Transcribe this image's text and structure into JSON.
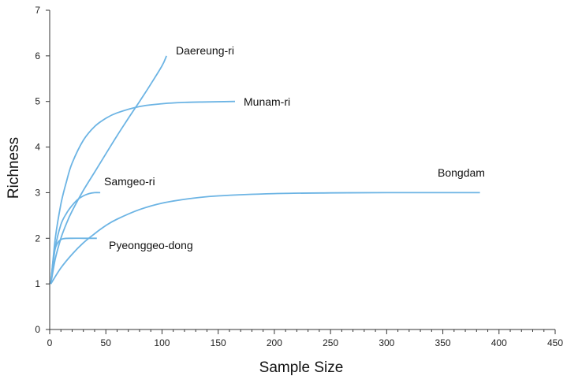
{
  "chart_data": {
    "type": "line",
    "xlabel": "Sample Size",
    "ylabel": "Richness",
    "xlim": [
      0,
      450
    ],
    "ylim": [
      0,
      7
    ],
    "x_major_ticks": [
      0,
      50,
      100,
      150,
      200,
      250,
      300,
      350,
      400,
      450
    ],
    "x_minor_step": 10,
    "y_ticks": [
      0,
      1,
      2,
      3,
      4,
      5,
      6,
      7
    ],
    "grid": false,
    "legend": "none",
    "line_color": "#6cb4e4",
    "series": [
      {
        "name": "Daereung-ri",
        "x": [
          1,
          5,
          10,
          15,
          20,
          30,
          40,
          50,
          60,
          70,
          80,
          90,
          100,
          104
        ],
        "y": [
          1.0,
          1.55,
          2.0,
          2.33,
          2.6,
          3.05,
          3.45,
          3.85,
          4.25,
          4.63,
          5.0,
          5.38,
          5.78,
          6.0
        ]
      },
      {
        "name": "Munam-ri",
        "x": [
          1,
          5,
          10,
          15,
          20,
          30,
          40,
          50,
          60,
          80,
          100,
          120,
          140,
          165
        ],
        "y": [
          1.0,
          2.0,
          2.75,
          3.25,
          3.65,
          4.15,
          4.45,
          4.63,
          4.75,
          4.89,
          4.95,
          4.98,
          4.99,
          5.0
        ]
      },
      {
        "name": "Samgeo-ri",
        "x": [
          1,
          5,
          10,
          15,
          20,
          25,
          30,
          35,
          40,
          45
        ],
        "y": [
          1.0,
          1.8,
          2.3,
          2.55,
          2.72,
          2.85,
          2.93,
          2.98,
          3.0,
          3.0
        ]
      },
      {
        "name": "Pyeonggeo-dong",
        "x": [
          1,
          3,
          5,
          8,
          12,
          20,
          30,
          42
        ],
        "y": [
          1.0,
          1.5,
          1.78,
          1.93,
          1.99,
          2.0,
          2.0,
          2.0
        ]
      },
      {
        "name": "Bongdam",
        "x": [
          1,
          10,
          20,
          30,
          40,
          50,
          60,
          80,
          100,
          125,
          150,
          200,
          250,
          300,
          383
        ],
        "y": [
          1.0,
          1.35,
          1.65,
          1.9,
          2.1,
          2.28,
          2.42,
          2.63,
          2.77,
          2.87,
          2.93,
          2.98,
          2.995,
          3.0,
          3.0
        ]
      }
    ]
  }
}
